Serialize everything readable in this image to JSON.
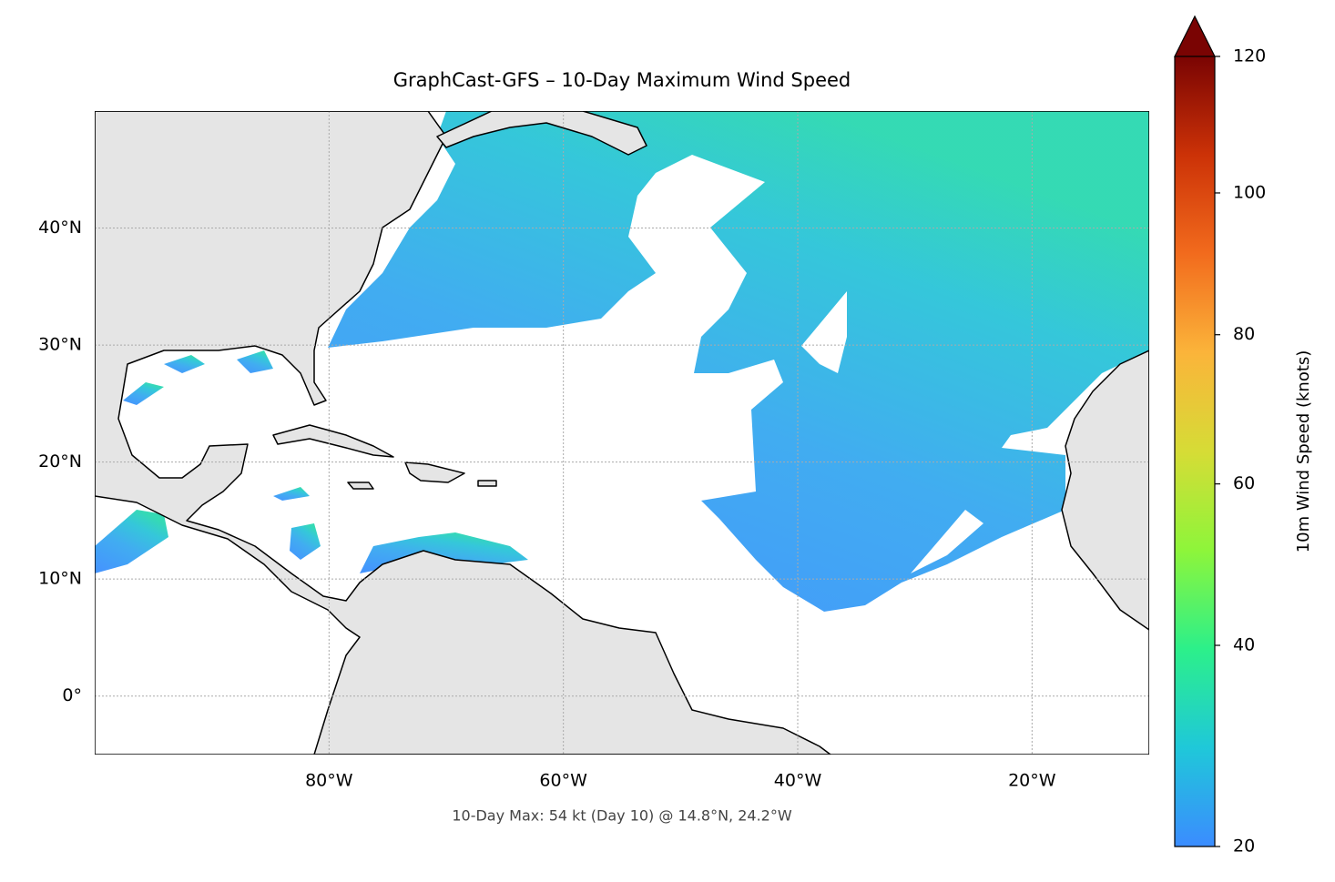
{
  "chart_data": {
    "type": "map",
    "title": "GraphCast-GFS – 10-Day Maximum Wind Speed",
    "annotation": "10-Day Max: 54 kt (Day 10) @ 14.8°N, 24.2°W",
    "xlim": [
      -100,
      -10
    ],
    "ylim": [
      -5,
      50
    ],
    "xticks": [
      {
        "value": -80,
        "label": "80°W"
      },
      {
        "value": -60,
        "label": "60°W"
      },
      {
        "value": -40,
        "label": "40°W"
      },
      {
        "value": -20,
        "label": "20°W"
      }
    ],
    "yticks": [
      {
        "value": 0,
        "label": "0°"
      },
      {
        "value": 10,
        "label": "10°N"
      },
      {
        "value": 20,
        "label": "20°N"
      },
      {
        "value": 30,
        "label": "30°N"
      },
      {
        "value": 40,
        "label": "40°N"
      }
    ],
    "grid": true,
    "colorbar": {
      "label": "10m Wind Speed (knots)",
      "lim": [
        20,
        120
      ],
      "ticks": [
        20,
        40,
        60,
        80,
        100,
        120
      ],
      "gamma": 0.85,
      "colors": [
        "#3b8cff",
        "#1fc8d9",
        "#2cf08a",
        "#8ef53a",
        "#d6dc36",
        "#fbb43a",
        "#f26b1d",
        "#cc3207",
        "#7a0403"
      ]
    }
  }
}
